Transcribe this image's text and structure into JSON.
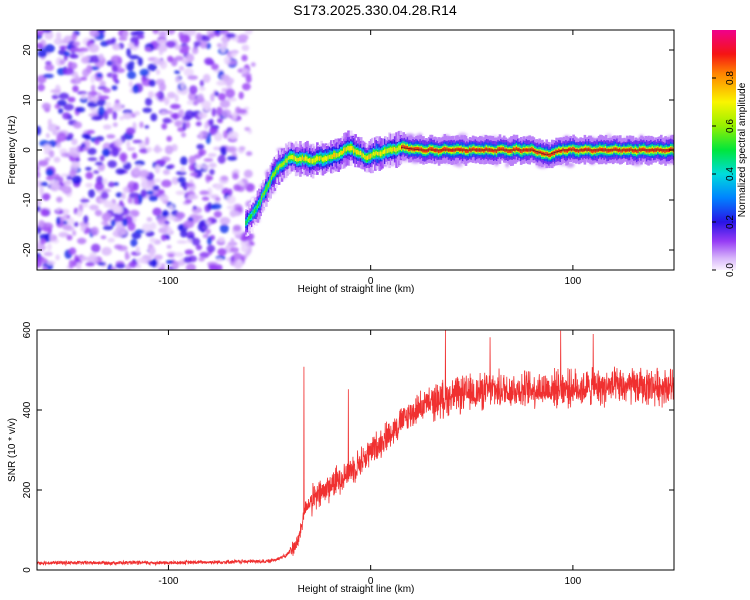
{
  "title": "S173.2025.330.04.28.R14",
  "chart_data": [
    {
      "type": "heatmap",
      "xlabel": "Height of straight line (km)",
      "ylabel": "Frequency (Hz)",
      "xlim": [
        -165,
        150
      ],
      "ylim": [
        -24,
        24
      ],
      "x_ticks": [
        -100,
        0,
        100
      ],
      "y_ticks": [
        -20,
        -10,
        0,
        10,
        20
      ],
      "colorbar": {
        "label": "Normalized spectral amplitude",
        "range": [
          0,
          1
        ],
        "ticks": [
          "0.0",
          "0.2",
          "0.4",
          "0.6",
          "0.8"
        ],
        "tick_values": [
          0.0,
          0.2,
          0.4,
          0.6,
          0.8
        ]
      },
      "noise_region": {
        "x": [
          -165,
          -60
        ],
        "f": [
          -24,
          24
        ],
        "typical_amplitude": 0.15
      },
      "ridge": [
        {
          "x": -60,
          "f": -13.5
        },
        {
          "x": -55,
          "f": -10.5
        },
        {
          "x": -50,
          "f": -6
        },
        {
          "x": -45,
          "f": -3
        },
        {
          "x": -40,
          "f": -1.5
        },
        {
          "x": -30,
          "f": -2
        },
        {
          "x": -20,
          "f": -1.5
        },
        {
          "x": -10,
          "f": 0.5
        },
        {
          "x": -3,
          "f": -1.5
        },
        {
          "x": 5,
          "f": -0.5
        },
        {
          "x": 15,
          "f": 0.5
        },
        {
          "x": 25,
          "f": 0
        },
        {
          "x": 80,
          "f": 0
        },
        {
          "x": 87,
          "f": -1
        },
        {
          "x": 95,
          "f": 0
        },
        {
          "x": 150,
          "f": 0
        }
      ]
    },
    {
      "type": "line",
      "xlabel": "Height of straight line (km)",
      "ylabel": "SNR (10 * v/v)",
      "xlim": [
        -165,
        150
      ],
      "ylim": [
        0,
        600
      ],
      "x_ticks": [
        -100,
        0,
        100
      ],
      "y_ticks": [
        0,
        200,
        400,
        600
      ],
      "line_color": "#f03030",
      "series_profile": [
        {
          "x": -165,
          "y": 18
        },
        {
          "x": -100,
          "y": 18
        },
        {
          "x": -50,
          "y": 22
        },
        {
          "x": -42,
          "y": 35
        },
        {
          "x": -36,
          "y": 70
        },
        {
          "x": -32,
          "y": 160
        },
        {
          "x": -25,
          "y": 190
        },
        {
          "x": -15,
          "y": 230
        },
        {
          "x": -5,
          "y": 270
        },
        {
          "x": 5,
          "y": 320
        },
        {
          "x": 15,
          "y": 370
        },
        {
          "x": 25,
          "y": 410
        },
        {
          "x": 40,
          "y": 435
        },
        {
          "x": 60,
          "y": 450
        },
        {
          "x": 100,
          "y": 455
        },
        {
          "x": 150,
          "y": 460
        }
      ],
      "spikes": [
        {
          "x": -33,
          "y": 508
        },
        {
          "x": -11,
          "y": 452
        },
        {
          "x": 37,
          "y": 600
        },
        {
          "x": 59,
          "y": 582
        },
        {
          "x": 94,
          "y": 598
        },
        {
          "x": 110,
          "y": 590
        }
      ]
    }
  ]
}
